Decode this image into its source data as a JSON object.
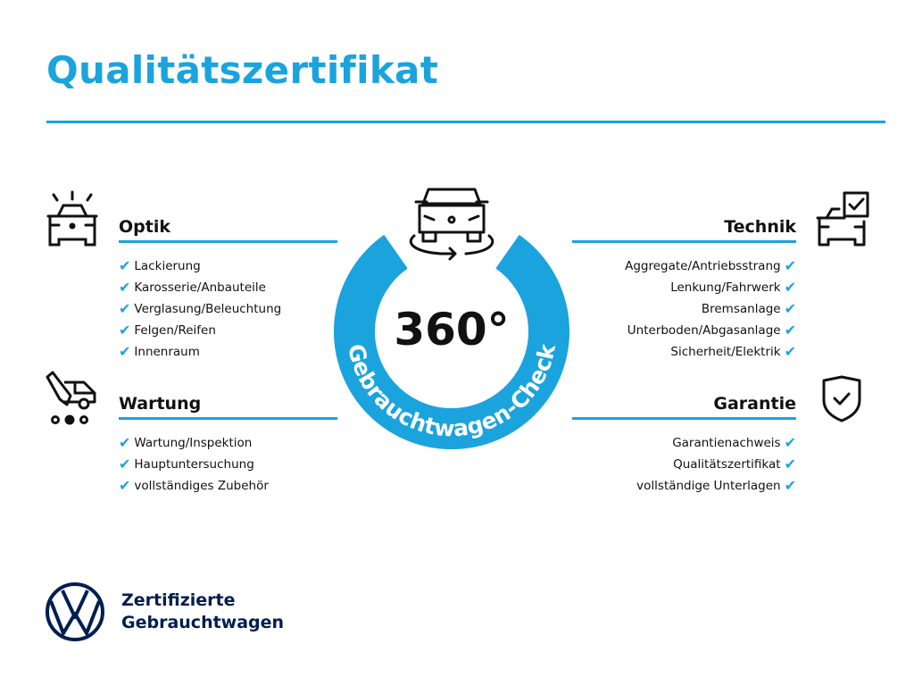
{
  "title": "Qualitätszertifikat",
  "center": {
    "degree": "360°",
    "ring_text": "Gebrauchtwagen-Check"
  },
  "sections": {
    "optik": {
      "title": "Optik",
      "items": [
        "Lackierung",
        "Karosserie/Anbauteile",
        "Verglasung/Beleuchtung",
        "Felgen/Reifen",
        "Innenraum"
      ]
    },
    "wartung": {
      "title": "Wartung",
      "items": [
        "Wartung/Inspektion",
        "Hauptuntersuchung",
        "vollständiges Zubehör"
      ]
    },
    "technik": {
      "title": "Technik",
      "items": [
        "Aggregate/Antriebsstrang",
        "Lenkung/Fahrwerk",
        "Bremsanlage",
        "Unterboden/Abgasanlage",
        "Sicherheit/Elektrik"
      ]
    },
    "garantie": {
      "title": "Garantie",
      "items": [
        "Garantienachweis",
        "Qualitätszertifikat",
        "vollständige Unterlagen"
      ]
    }
  },
  "check_glyph": "✔",
  "footer": {
    "line1": "Zertifizierte",
    "line2": "Gebrauchtwagen"
  },
  "colors": {
    "accent": "#1ba3dd",
    "brand": "#001e50"
  }
}
